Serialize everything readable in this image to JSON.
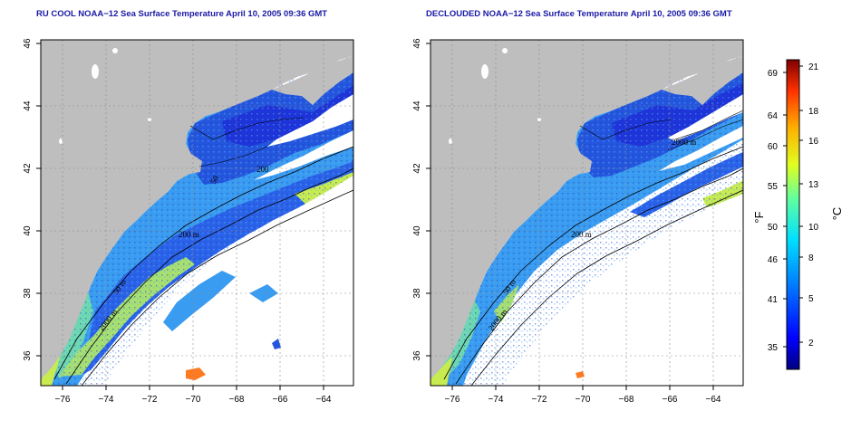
{
  "panels": [
    {
      "id": "left",
      "title": "RU COOL NOAA−12 Sea Surface Temperature April 10, 2005 09:36 GMT",
      "contour_labels": [
        "50 m",
        "200 m",
        "2000 m",
        "200",
        "50"
      ]
    },
    {
      "id": "right",
      "title": "DECLOUDED NOAA−12 Sea Surface Temperature April 10, 2005 09:36 GMT",
      "contour_labels": [
        "50 m",
        "200 m",
        "2000 m",
        "2000 m"
      ]
    }
  ],
  "axes": {
    "x_ticks": [
      "−76",
      "−74",
      "−72",
      "−70",
      "−68",
      "−66",
      "−64"
    ],
    "y_ticks": [
      "46",
      "44",
      "42",
      "40",
      "38",
      "36"
    ]
  },
  "colorbar": {
    "fahrenheit_label": "°F",
    "celsius_label": "°C",
    "fahrenheit_ticks": [
      "69",
      "64",
      "60",
      "55",
      "50",
      "46",
      "41",
      "35"
    ],
    "celsius_ticks": [
      "21",
      "18",
      "16",
      "13",
      "10",
      "8",
      "5",
      "2"
    ],
    "colors": [
      "#000080",
      "#0000ff",
      "#0080ff",
      "#00e0ff",
      "#60ffa0",
      "#e0ff20",
      "#ffb000",
      "#ff3000",
      "#800000"
    ]
  },
  "colors": {
    "land": "#bebebe",
    "no_data": "#ffffff",
    "cold_water": "#1f4fe0",
    "mid_water": "#3aa0f0",
    "warm_water": "#b8e850"
  }
}
